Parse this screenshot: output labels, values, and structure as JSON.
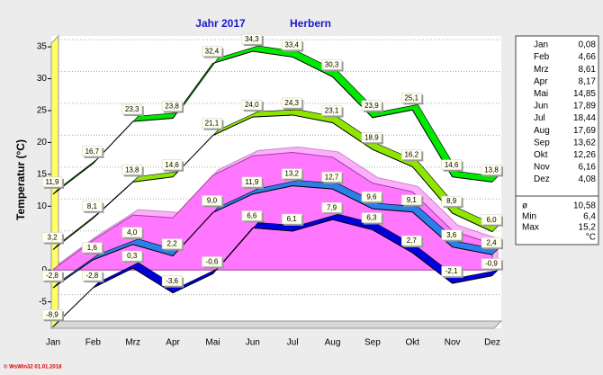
{
  "chart_data": {
    "type": "line",
    "title": "Jahr  2017",
    "subtitle": "Herbern",
    "ylabel": "Temperatur  (°C)",
    "footer": "© WsWin32  01.01.2018",
    "categories": [
      "Jan",
      "Feb",
      "Mrz",
      "Apr",
      "Mai",
      "Jun",
      "Jul",
      "Aug",
      "Sep",
      "Okt",
      "Nov",
      "Dez"
    ],
    "ylim": [
      -9,
      36
    ],
    "yticks": [
      -5,
      0,
      5,
      10,
      15,
      20,
      25,
      30,
      35
    ],
    "grid": true,
    "series": [
      {
        "style": "area",
        "color": "#ff77ff",
        "labels_shown": false,
        "values": [
          0.08,
          4.66,
          8.61,
          8.17,
          14.85,
          17.89,
          18.44,
          17.69,
          13.62,
          12.26,
          6.16,
          4.08
        ],
        "value_labels": [
          "0,08",
          "4,66",
          "8,61",
          "8,17",
          "14,85",
          "17,89",
          "18,44",
          "17,69",
          "13,62",
          "12,26",
          "6,16",
          "4,08"
        ]
      },
      {
        "style": "ribbon",
        "color": "#2a7fe8",
        "labels_shown": true,
        "values": [
          -2.8,
          1.6,
          4.0,
          2.2,
          9.0,
          11.9,
          13.2,
          12.7,
          9.6,
          9.1,
          3.6,
          2.4
        ],
        "value_labels": [
          "-2,8",
          "1,6",
          "4,0",
          "2,2",
          "9,0",
          "11,9",
          "13,2",
          "12,7",
          "9,6",
          "9,1",
          "3,6",
          "2,4"
        ]
      },
      {
        "style": "ribbon",
        "color": "#0000dd",
        "labels_shown": true,
        "values": [
          -8.9,
          -2.8,
          0.3,
          -3.6,
          -0.6,
          6.6,
          6.1,
          7.9,
          6.3,
          2.7,
          -2.1,
          -0.9
        ],
        "value_labels": [
          "-8,9",
          "-2,8",
          "0,3",
          "-3,6",
          "-0,6",
          "6,6",
          "6,1",
          "7,9",
          "6,3",
          "2,7",
          "-2,1",
          "-0,9"
        ]
      },
      {
        "style": "ribbon",
        "color": "#8ee600",
        "labels_shown": true,
        "values": [
          3.2,
          8.1,
          13.8,
          14.6,
          21.1,
          24.0,
          24.3,
          23.1,
          18.9,
          16.2,
          8.9,
          6.0
        ],
        "value_labels": [
          "3,2",
          "8,1",
          "13,8",
          "14,6",
          "21,1",
          "24,0",
          "24,3",
          "23,1",
          "18,9",
          "16,2",
          "8,9",
          "6,0"
        ]
      },
      {
        "style": "ribbon",
        "color": "#00e800",
        "labels_shown": true,
        "values": [
          11.9,
          16.7,
          23.3,
          23.8,
          32.4,
          34.3,
          33.4,
          30.3,
          23.9,
          25.1,
          14.6,
          13.8
        ],
        "value_labels": [
          "11,9",
          "16,7",
          "23,3",
          "23,8",
          "32,4",
          "34,3",
          "33,4",
          "30,3",
          "23,9",
          "25,1",
          "14,6",
          "13,8"
        ]
      }
    ],
    "summary": {
      "rows": [
        [
          "ø",
          "10,58"
        ],
        [
          "Min",
          "6,4"
        ],
        [
          "Max",
          "15,2"
        ]
      ],
      "unit": "°C"
    }
  }
}
